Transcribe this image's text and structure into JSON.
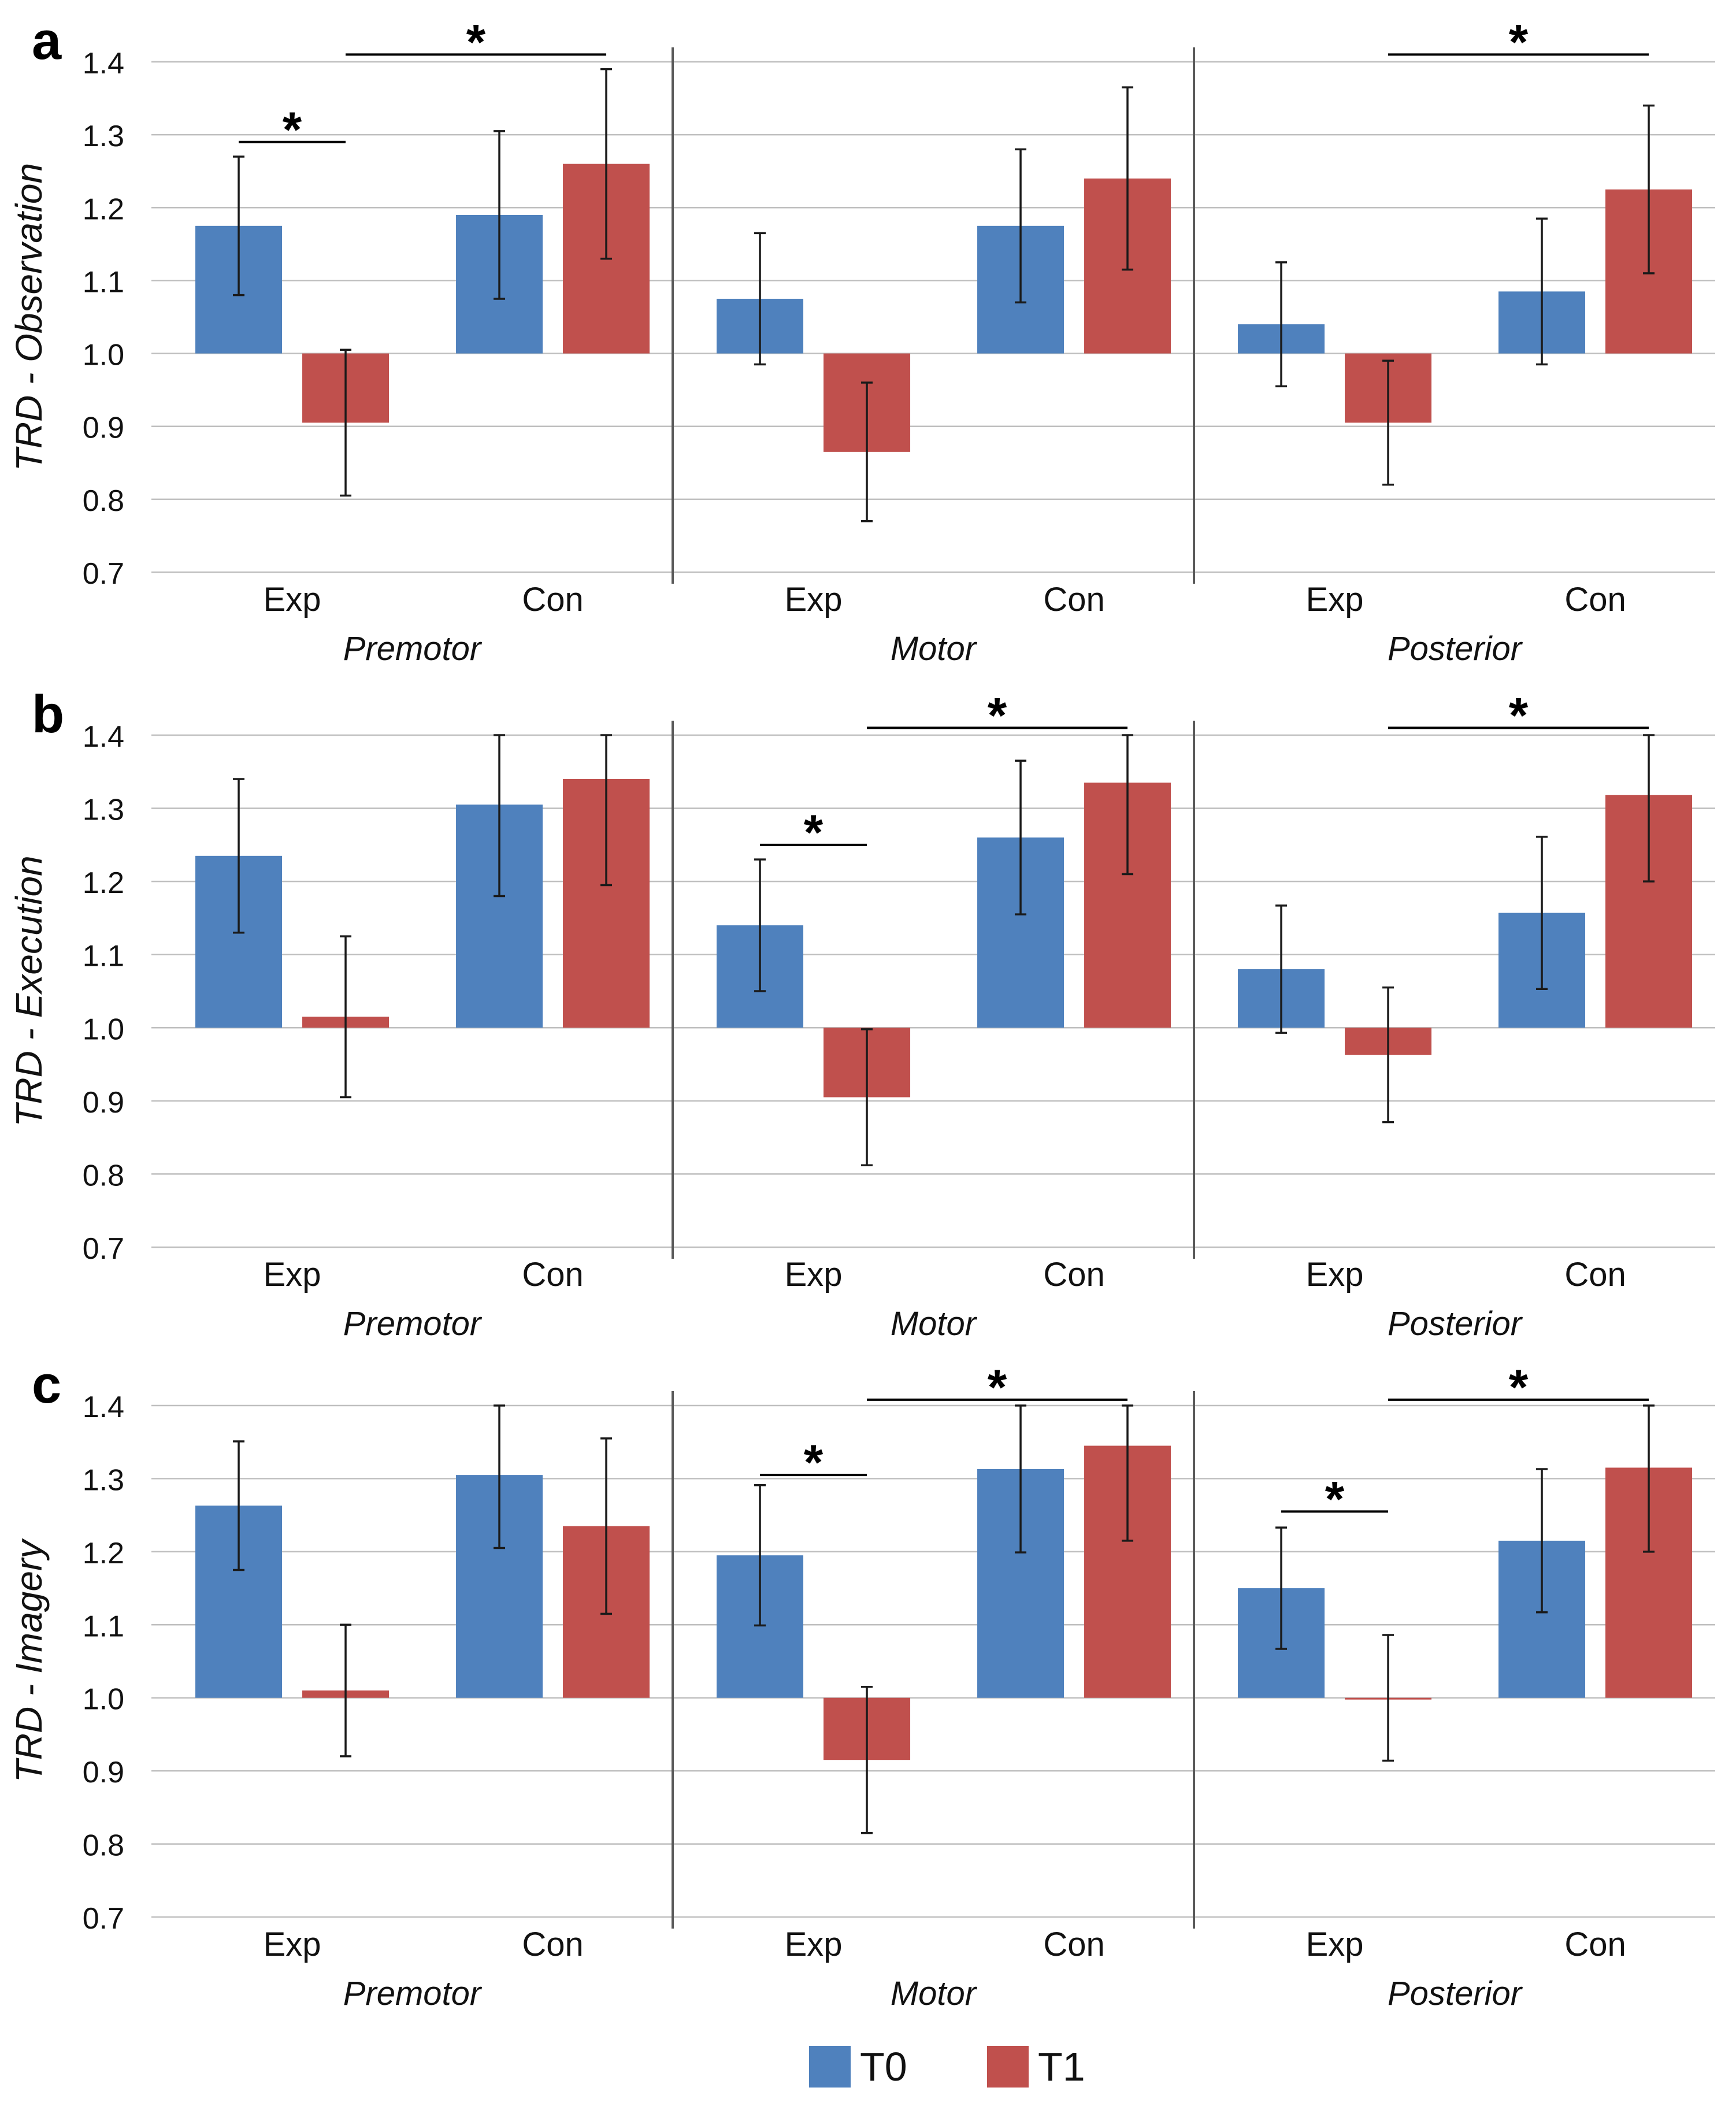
{
  "colors": {
    "t0": "#4F81BD",
    "t1": "#C0504D",
    "grid": "#BFBFBF",
    "divider": "#595959",
    "errorbar": "#1a1a1a",
    "text": "#111111"
  },
  "legend": [
    {
      "label": "T0",
      "color": "#4F81BD"
    },
    {
      "label": "T1",
      "color": "#C0504D"
    }
  ],
  "chart_data": [
    {
      "type": "bar",
      "panel_label": "a",
      "ylabel": "TRD - Observation",
      "ylim": [
        0.7,
        1.4
      ],
      "yticks": [
        "0.7",
        "0.8",
        "0.9",
        "1.0",
        "1.1",
        "1.2",
        "1.3",
        "1.4"
      ],
      "baseline": 1.0,
      "regions": [
        "Premotor",
        "Motor",
        "Posterior"
      ],
      "categories": [
        "Exp",
        "Con"
      ],
      "series": [
        {
          "name": "T0",
          "values": [
            [
              1.175,
              1.19
            ],
            [
              1.075,
              1.175
            ],
            [
              1.04,
              1.085
            ]
          ],
          "errors": [
            [
              0.095,
              0.115
            ],
            [
              0.09,
              0.105
            ],
            [
              0.085,
              0.1
            ]
          ]
        },
        {
          "name": "T1",
          "values": [
            [
              0.905,
              1.26
            ],
            [
              0.865,
              1.24
            ],
            [
              0.905,
              1.225
            ]
          ],
          "errors": [
            [
              0.1,
              0.13
            ],
            [
              0.095,
              0.125
            ],
            [
              0.085,
              0.115
            ]
          ]
        }
      ],
      "significance": [
        {
          "label": "*",
          "region": 0,
          "type": "within",
          "group": 0,
          "y": 1.29
        },
        {
          "label": "*",
          "region": 0,
          "type": "between",
          "y": 1.41
        },
        {
          "label": "*",
          "region": 2,
          "type": "between",
          "y": 1.41
        }
      ]
    },
    {
      "type": "bar",
      "panel_label": "b",
      "ylabel": "TRD - Execution",
      "ylim": [
        0.7,
        1.4
      ],
      "yticks": [
        "0.7",
        "0.8",
        "0.9",
        "1.0",
        "1.1",
        "1.2",
        "1.3",
        "1.4"
      ],
      "baseline": 1.0,
      "regions": [
        "Premotor",
        "Motor",
        "Posterior"
      ],
      "categories": [
        "Exp",
        "Con"
      ],
      "series": [
        {
          "name": "T0",
          "values": [
            [
              1.235,
              1.305
            ],
            [
              1.14,
              1.26
            ],
            [
              1.08,
              1.157
            ]
          ],
          "errors": [
            [
              0.105,
              0.125
            ],
            [
              0.09,
              0.105
            ],
            [
              0.087,
              0.104
            ]
          ]
        },
        {
          "name": "T1",
          "values": [
            [
              1.015,
              1.34
            ],
            [
              0.905,
              1.335
            ],
            [
              0.963,
              1.318
            ]
          ],
          "errors": [
            [
              0.11,
              0.145
            ],
            [
              0.093,
              0.125
            ],
            [
              0.092,
              0.118
            ]
          ]
        }
      ],
      "significance": [
        {
          "label": "*",
          "region": 1,
          "type": "within",
          "group": 0,
          "y": 1.25
        },
        {
          "label": "*",
          "region": 1,
          "type": "between",
          "y": 1.41
        },
        {
          "label": "*",
          "region": 2,
          "type": "between",
          "y": 1.41
        }
      ]
    },
    {
      "type": "bar",
      "panel_label": "c",
      "ylabel": "TRD - Imagery",
      "ylim": [
        0.7,
        1.4
      ],
      "yticks": [
        "0.7",
        "0.8",
        "0.9",
        "1.0",
        "1.1",
        "1.2",
        "1.3",
        "1.4"
      ],
      "baseline": 1.0,
      "regions": [
        "Premotor",
        "Motor",
        "Posterior"
      ],
      "categories": [
        "Exp",
        "Con"
      ],
      "series": [
        {
          "name": "T0",
          "values": [
            [
              1.263,
              1.305
            ],
            [
              1.195,
              1.313
            ],
            [
              1.15,
              1.215
            ]
          ],
          "errors": [
            [
              0.088,
              0.1
            ],
            [
              0.096,
              0.114
            ],
            [
              0.083,
              0.098
            ]
          ]
        },
        {
          "name": "T1",
          "values": [
            [
              1.01,
              1.235
            ],
            [
              0.915,
              1.345
            ],
            [
              1.0,
              1.315
            ]
          ],
          "errors": [
            [
              0.09,
              0.12
            ],
            [
              0.1,
              0.13
            ],
            [
              0.086,
              0.115
            ]
          ]
        }
      ],
      "significance": [
        {
          "label": "*",
          "region": 1,
          "type": "within",
          "group": 0,
          "y": 1.305
        },
        {
          "label": "*",
          "region": 1,
          "type": "between",
          "y": 1.408
        },
        {
          "label": "*",
          "region": 2,
          "type": "within",
          "group": 0,
          "y": 1.255
        },
        {
          "label": "*",
          "region": 2,
          "type": "between",
          "y": 1.408
        }
      ]
    }
  ]
}
